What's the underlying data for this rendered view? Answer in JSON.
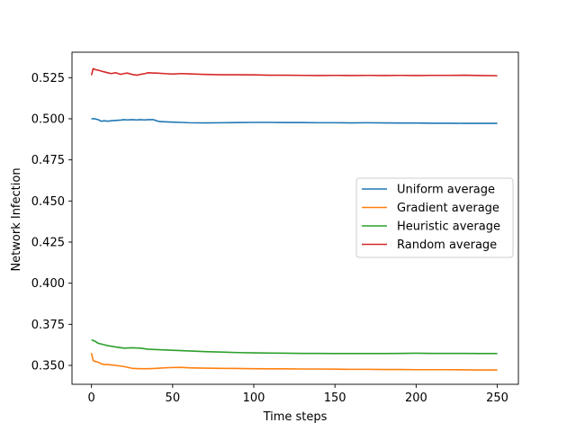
{
  "chart_data": {
    "type": "line",
    "title": "",
    "xlabel": "Time steps",
    "ylabel": "Network Infection",
    "xlim": [
      -12,
      263
    ],
    "ylim": [
      0.3385,
      0.5405
    ],
    "xticks": [
      0,
      50,
      100,
      150,
      200,
      250
    ],
    "xtick_labels": [
      "0",
      "50",
      "100",
      "150",
      "200",
      "250"
    ],
    "yticks": [
      0.35,
      0.375,
      0.4,
      0.425,
      0.45,
      0.475,
      0.5,
      0.525
    ],
    "ytick_labels": [
      "0.350",
      "0.375",
      "0.400",
      "0.425",
      "0.450",
      "0.475",
      "0.500",
      "0.525"
    ],
    "grid": false,
    "legend_position": "center-right",
    "series": [
      {
        "name": "Uniform average",
        "color": "#1f77b4",
        "x": [
          0,
          2,
          4,
          6,
          8,
          10,
          12,
          15,
          18,
          20,
          22,
          25,
          28,
          30,
          33,
          35,
          38,
          40,
          42,
          45,
          50,
          55,
          60,
          70,
          80,
          90,
          100,
          110,
          120,
          130,
          140,
          150,
          160,
          170,
          180,
          190,
          200,
          210,
          220,
          230,
          240,
          250
        ],
        "y": [
          0.5,
          0.5,
          0.4995,
          0.4985,
          0.4988,
          0.4985,
          0.4988,
          0.499,
          0.4992,
          0.4995,
          0.4993,
          0.4995,
          0.4993,
          0.4995,
          0.4993,
          0.4995,
          0.4995,
          0.4988,
          0.4983,
          0.4982,
          0.498,
          0.4978,
          0.4976,
          0.4975,
          0.4976,
          0.4977,
          0.4978,
          0.4978,
          0.4977,
          0.4977,
          0.4976,
          0.4976,
          0.4975,
          0.4976,
          0.4975,
          0.4974,
          0.4974,
          0.4973,
          0.4973,
          0.4972,
          0.4972,
          0.4972
        ]
      },
      {
        "name": "Gradient average",
        "color": "#ff7f0e",
        "x": [
          0,
          1,
          2,
          4,
          6,
          8,
          10,
          15,
          20,
          25,
          30,
          35,
          40,
          45,
          50,
          55,
          60,
          70,
          80,
          90,
          100,
          110,
          120,
          130,
          140,
          150,
          160,
          170,
          180,
          190,
          200,
          210,
          220,
          230,
          240,
          250
        ],
        "y": [
          0.3575,
          0.353,
          0.3525,
          0.352,
          0.351,
          0.3505,
          0.3505,
          0.35,
          0.3493,
          0.3482,
          0.348,
          0.348,
          0.3482,
          0.3485,
          0.3487,
          0.3488,
          0.3485,
          0.3483,
          0.3482,
          0.3481,
          0.348,
          0.3479,
          0.3479,
          0.3478,
          0.3478,
          0.3477,
          0.3476,
          0.3476,
          0.3475,
          0.3475,
          0.3474,
          0.3474,
          0.3474,
          0.3473,
          0.3472,
          0.3472
        ]
      },
      {
        "name": "Heuristic average",
        "color": "#2ca02c",
        "x": [
          0,
          2,
          4,
          6,
          8,
          10,
          15,
          20,
          25,
          30,
          35,
          40,
          45,
          50,
          55,
          60,
          70,
          80,
          90,
          100,
          110,
          120,
          130,
          140,
          150,
          160,
          170,
          180,
          190,
          200,
          210,
          220,
          230,
          240,
          250
        ],
        "y": [
          0.3655,
          0.3648,
          0.3635,
          0.363,
          0.3625,
          0.362,
          0.3612,
          0.3605,
          0.3607,
          0.3605,
          0.3598,
          0.3596,
          0.3594,
          0.3592,
          0.359,
          0.3588,
          0.3584,
          0.3581,
          0.3578,
          0.3576,
          0.3575,
          0.3574,
          0.3573,
          0.3573,
          0.3572,
          0.3572,
          0.3572,
          0.3572,
          0.3573,
          0.3574,
          0.3573,
          0.3573,
          0.3573,
          0.3572,
          0.3572
        ]
      },
      {
        "name": "Random average",
        "color": "#d62728",
        "x": [
          0,
          1,
          2,
          4,
          6,
          8,
          10,
          12,
          15,
          18,
          20,
          22,
          25,
          28,
          30,
          33,
          35,
          38,
          40,
          45,
          50,
          55,
          60,
          70,
          80,
          90,
          100,
          110,
          120,
          130,
          140,
          150,
          160,
          170,
          180,
          190,
          200,
          210,
          220,
          230,
          240,
          250
        ],
        "y": [
          0.5265,
          0.5305,
          0.53,
          0.5296,
          0.529,
          0.5285,
          0.528,
          0.5275,
          0.528,
          0.527,
          0.5275,
          0.5278,
          0.527,
          0.5265,
          0.527,
          0.5275,
          0.528,
          0.5278,
          0.5278,
          0.5275,
          0.5272,
          0.5275,
          0.5273,
          0.527,
          0.5268,
          0.5268,
          0.5267,
          0.5265,
          0.5265,
          0.5264,
          0.5263,
          0.5264,
          0.5263,
          0.5264,
          0.5263,
          0.5264,
          0.5263,
          0.5264,
          0.5264,
          0.5265,
          0.5263,
          0.5262
        ]
      }
    ]
  }
}
